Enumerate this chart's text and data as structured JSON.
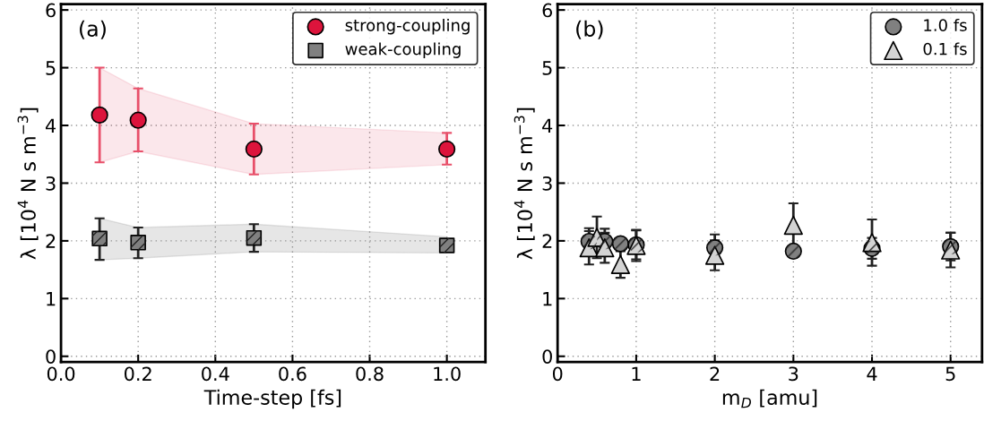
{
  "chart_data": [
    {
      "type": "scatter",
      "ylabel": "λ [10$^{4}$ N s m$^{−3}$]",
      "xlabel": "Time-step [fs]",
      "annotations": [
        "(a)"
      ],
      "xlim": [
        0,
        1.1
      ],
      "xticks": [
        {
          "value": 0,
          "label": "0.0"
        },
        {
          "value": 0.2,
          "label": "0.2"
        },
        {
          "value": 0.4,
          "label": "0.4"
        },
        {
          "value": 0.6,
          "label": "0.6"
        },
        {
          "value": 0.8,
          "label": "0.8"
        },
        {
          "value": 1.0,
          "label": "1.0"
        }
      ],
      "ylim": [
        -0.1,
        6.1
      ],
      "yticks": [
        0,
        1,
        2,
        3,
        4,
        5,
        6
      ],
      "grid": true,
      "legend": "top right",
      "series": [
        {
          "name": "strong-coupling",
          "color": "#dc143c",
          "marker": "circle",
          "x": [
            0.1,
            0.2,
            0.5,
            1.0
          ],
          "values": [
            4.18,
            4.09,
            3.59,
            3.59
          ],
          "errors": [
            [
              3.36,
              5.0
            ],
            [
              3.55,
              4.64
            ],
            [
              3.15,
              4.03
            ],
            [
              3.32,
              3.87
            ]
          ],
          "lower": [
            3.36,
            3.55,
            3.15,
            3.32
          ],
          "upper": [
            5.0,
            4.64,
            4.03,
            3.87
          ]
        },
        {
          "name": "weak-coupling",
          "color": "#808080",
          "marker": "square",
          "x": [
            0.1,
            0.2,
            0.5,
            1.0
          ],
          "values": [
            2.04,
            1.97,
            2.05,
            1.92
          ],
          "errors": [
            [
              1.67,
              2.39
            ],
            [
              1.7,
              2.23
            ],
            [
              1.81,
              2.29
            ],
            null
          ],
          "lower": [
            1.67,
            1.7,
            1.81,
            1.79
          ],
          "upper": [
            2.39,
            2.23,
            2.29,
            2.07
          ]
        }
      ]
    },
    {
      "type": "scatter",
      "ylabel": "λ [10$^{4}$ N s m$^{−3}$]",
      "xlabel": "m$_{D}$ [amu]",
      "annotations": [
        "(b)"
      ],
      "xlim": [
        0,
        5.4
      ],
      "xticks": [
        0,
        1,
        2,
        3,
        4,
        5
      ],
      "ylim": [
        -0.1,
        6.1
      ],
      "yticks": [
        0,
        1,
        2,
        3,
        4,
        5,
        6
      ],
      "grid": true,
      "legend": "top right",
      "series": [
        {
          "name": "1.0 fs",
          "color": "#808080",
          "marker": "circle",
          "x": [
            0.4,
            0.5,
            0.6,
            0.8,
            1.0,
            2,
            3,
            4,
            5
          ],
          "values": [
            1.99,
            null,
            1.99,
            1.95,
            1.93,
            1.88,
            1.82,
            1.87,
            1.9
          ],
          "errors": [
            0.23,
            null,
            0.22,
            null,
            0.25,
            0.23,
            null,
            0.18,
            0.24
          ]
        },
        {
          "name": "0.1 fs",
          "color": "#d3d3d3",
          "marker": "triangle",
          "x": [
            0.4,
            0.5,
            0.6,
            0.8,
            1.0,
            2,
            3,
            4,
            5
          ],
          "values": [
            1.88,
            2.06,
            1.88,
            1.59,
            1.92,
            1.75,
            2.27,
            1.97,
            1.84
          ],
          "errors": [
            0.29,
            0.36,
            0.26,
            0.23,
            0.27,
            0.26,
            0.38,
            0.4,
            0.3
          ]
        }
      ]
    }
  ]
}
